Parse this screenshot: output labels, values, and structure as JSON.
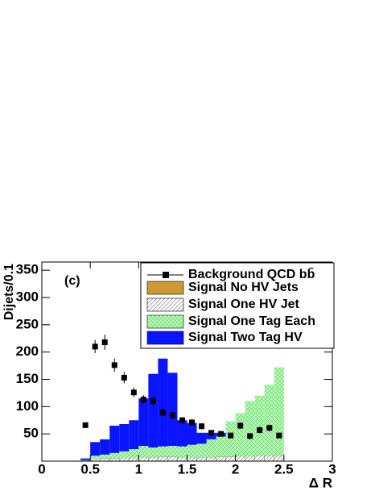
{
  "chart_data": {
    "type": "histogram",
    "annotation": "(c)",
    "x_label": "Δ R",
    "y_label": "Dijets/0.1",
    "xlim": [
      0,
      3
    ],
    "ylim": [
      0,
      365
    ],
    "xticks": [
      0,
      0.5,
      1,
      1.5,
      2,
      2.5,
      3
    ],
    "yticks": [
      50,
      100,
      150,
      200,
      250,
      300,
      350
    ],
    "bins": [
      0.4,
      0.5,
      0.6,
      0.7,
      0.8,
      0.9,
      1.0,
      1.1,
      1.2,
      1.3,
      1.4,
      1.5,
      1.6,
      1.7,
      1.8,
      1.9,
      2.0,
      2.1,
      2.2,
      2.3,
      2.4,
      2.5
    ],
    "stacked": true,
    "series": [
      {
        "name": "Background QCD bb̄",
        "color": "#000000",
        "marker": "square",
        "x": [
          0.45,
          0.55,
          0.65,
          0.75,
          0.85,
          0.95,
          1.05,
          1.15,
          1.25,
          1.35,
          1.45,
          1.55,
          1.65,
          1.75,
          1.85,
          1.95,
          2.05,
          2.15,
          2.25,
          2.35,
          2.45
        ],
        "values": [
          66,
          210,
          218,
          176,
          153,
          126,
          113,
          110,
          89,
          84,
          75,
          71,
          64,
          52,
          50,
          47,
          65,
          46,
          57,
          61,
          47
        ],
        "errors": [
          5,
          12,
          14,
          12,
          10,
          9,
          8,
          8,
          7,
          7,
          6,
          6,
          6,
          5,
          5,
          5,
          6,
          5,
          6,
          6,
          5
        ]
      },
      {
        "name": "Signal No HV Jets",
        "color": "#cc9933",
        "pattern": "solid",
        "values": [
          0,
          0,
          0,
          0,
          0,
          0,
          0,
          0,
          0,
          0,
          0,
          0,
          0,
          0,
          0,
          0,
          0,
          0,
          0,
          0,
          0
        ]
      },
      {
        "name": "Signal One HV Jet",
        "color": "#999999",
        "pattern": "diagonal",
        "values": [
          1,
          4,
          5,
          5,
          6,
          6,
          7,
          7,
          8,
          8,
          7,
          7,
          7,
          7,
          8,
          8,
          9,
          9,
          10,
          10,
          10
        ]
      },
      {
        "name": "Signal One Tag Each",
        "color": "#66dd66",
        "pattern": "crosshatch",
        "values": [
          1,
          6,
          7,
          10,
          12,
          16,
          21,
          18,
          19,
          20,
          20,
          23,
          25,
          33,
          37,
          65,
          79,
          101,
          110,
          130,
          162
        ]
      },
      {
        "name": "Signal Two Tag HV",
        "color": "#0a14ff",
        "pattern": "solid",
        "values": [
          3,
          25,
          28,
          50,
          50,
          53,
          87,
          135,
          161,
          134,
          48,
          40,
          20,
          12,
          7,
          0,
          0,
          0,
          0,
          0,
          0
        ]
      }
    ]
  }
}
